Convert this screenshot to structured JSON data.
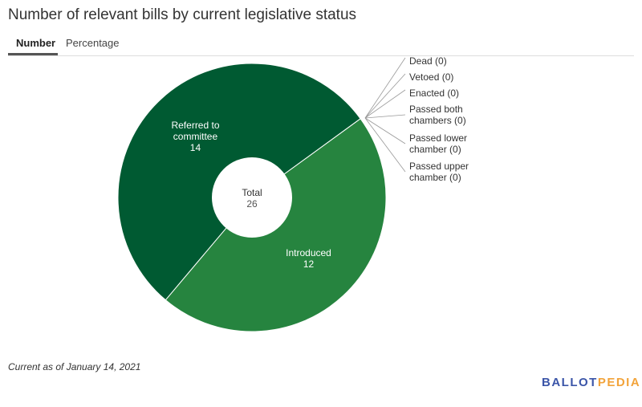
{
  "header": {
    "title": "Number of relevant bills by current legislative status"
  },
  "tabs": [
    {
      "label": "Number",
      "active": true
    },
    {
      "label": "Percentage",
      "active": false
    }
  ],
  "chart_data": {
    "type": "pie",
    "donut": true,
    "center_label": "Total",
    "center_value": "26",
    "slices": [
      {
        "label": "Introduced",
        "value": 12,
        "color": "#26843f"
      },
      {
        "label": "Referred to committee",
        "value": 14,
        "color": "#005a32"
      },
      {
        "label": "Dead",
        "value": 0
      },
      {
        "label": "Vetoed",
        "value": 0
      },
      {
        "label": "Enacted",
        "value": 0
      },
      {
        "label": "Passed both chambers",
        "value": 0
      },
      {
        "label": "Passed lower chamber",
        "value": 0
      },
      {
        "label": "Passed upper chamber",
        "value": 0
      }
    ],
    "inside_labels": {
      "Introduced": [
        "Introduced",
        "12"
      ],
      "Referred to committee": [
        "Referred to",
        "committee",
        "14"
      ]
    },
    "outside_labels": [
      [
        "Dead (0)"
      ],
      [
        "Vetoed (0)"
      ],
      [
        "Enacted (0)"
      ],
      [
        "Passed both",
        "chambers (0)"
      ],
      [
        "Passed lower",
        "chamber (0)"
      ],
      [
        "Passed upper",
        "chamber (0)"
      ]
    ]
  },
  "footer": {
    "note": "Current as of January 14, 2021",
    "logo_part1": "BALLOT",
    "logo_part2": "PEDIA",
    "logo_color1": "#3b55a8",
    "logo_color2": "#f2a33a"
  }
}
